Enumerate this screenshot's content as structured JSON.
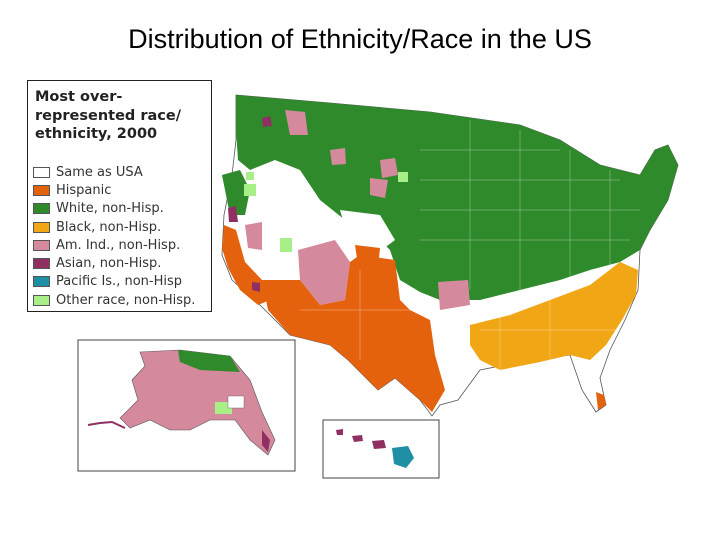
{
  "title": "Distribution of Ethnicity/Race in the US",
  "legend": {
    "heading_lines": [
      "Most over-",
      "represented race/",
      "ethnicity, 2000"
    ],
    "items": [
      {
        "label": "Same as USA",
        "color": "#ffffff"
      },
      {
        "label": "Hispanic",
        "color": "#e4620e"
      },
      {
        "label": "White, non-Hisp.",
        "color": "#2f8a2c"
      },
      {
        "label": "Black, non-Hisp.",
        "color": "#f1a615"
      },
      {
        "label": "Am. Ind., non-Hisp.",
        "color": "#d48a9c"
      },
      {
        "label": "Asian, non-Hisp.",
        "color": "#8f2f62"
      },
      {
        "label": "Pacific Is., non-Hisp",
        "color": "#1f8fa3"
      },
      {
        "label": "Other race, non-Hisp.",
        "color": "#a8ef87"
      }
    ]
  },
  "map": {
    "regions": [
      "Contiguous US",
      "Alaska",
      "Hawaii"
    ]
  }
}
